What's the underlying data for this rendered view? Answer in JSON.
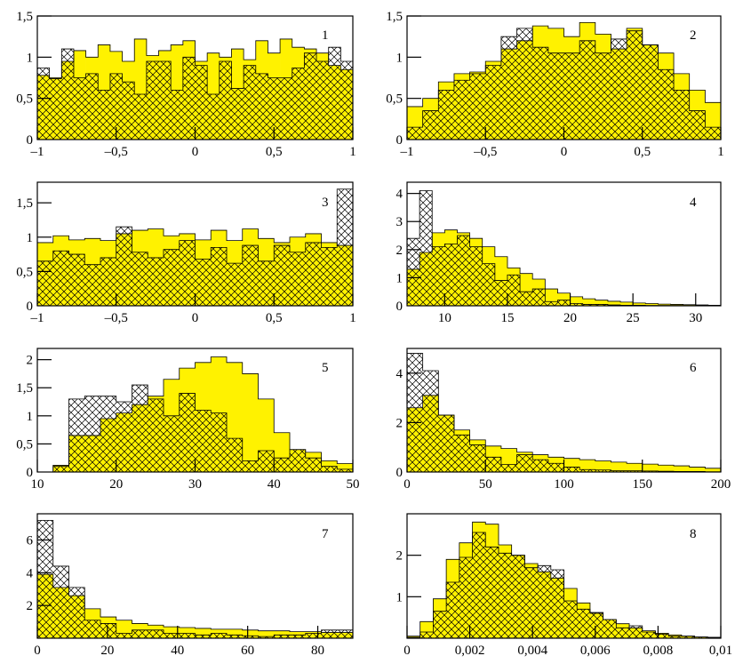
{
  "figure": {
    "colors": {
      "yellow": "#FFF200",
      "hatch": "#000000",
      "line": "#000000",
      "background": "#FFFFFF"
    }
  },
  "chart_data": [
    {
      "type": "histogram",
      "panel": "1",
      "xlim": [
        -1,
        1
      ],
      "ylim": [
        0,
        1.5
      ],
      "xticks": [
        -1,
        -0.5,
        0,
        0.5,
        1
      ],
      "xtick_labels": [
        "–1",
        "–0,5",
        "0",
        "0,5",
        "1"
      ],
      "yticks": [
        0,
        0.5,
        1,
        1.5
      ],
      "ytick_labels": [
        "0",
        "0,5",
        "1",
        "1,5"
      ],
      "bins": 26,
      "series": [
        {
          "style": "yellow-filled",
          "values": [
            0.78,
            0.75,
            0.95,
            1.08,
            1.0,
            1.15,
            1.07,
            0.95,
            1.22,
            1.02,
            1.08,
            1.15,
            1.2,
            0.95,
            1.05,
            1.0,
            1.1,
            0.97,
            1.2,
            1.05,
            1.22,
            1.12,
            1.1,
            1.05,
            0.9,
            0.85
          ]
        },
        {
          "style": "hatched",
          "values": [
            0.87,
            0.74,
            1.1,
            0.75,
            0.8,
            0.6,
            0.8,
            0.7,
            0.55,
            0.95,
            0.95,
            0.6,
            1.0,
            0.9,
            0.55,
            0.95,
            0.62,
            0.9,
            0.8,
            0.75,
            0.75,
            0.87,
            1.05,
            0.95,
            1.12,
            0.95
          ]
        }
      ]
    },
    {
      "type": "histogram",
      "panel": "2",
      "xlim": [
        -1,
        1
      ],
      "ylim": [
        0,
        1.5
      ],
      "xticks": [
        -1,
        -0.5,
        0,
        0.5,
        1
      ],
      "xtick_labels": [
        "–1",
        "–0,5",
        "0",
        "0,5",
        "1"
      ],
      "yticks": [
        0,
        0.5,
        1,
        1.5
      ],
      "ytick_labels": [
        "0",
        "0,5",
        "1",
        "1,5"
      ],
      "bins": 20,
      "series": [
        {
          "style": "yellow-filled",
          "values": [
            0.4,
            0.5,
            0.7,
            0.8,
            0.82,
            0.95,
            1.1,
            1.2,
            1.38,
            1.35,
            1.25,
            1.42,
            1.28,
            1.1,
            1.35,
            1.15,
            1.05,
            0.8,
            0.6,
            0.45
          ]
        },
        {
          "style": "hatched",
          "values": [
            0.15,
            0.35,
            0.6,
            0.72,
            0.8,
            0.9,
            1.25,
            1.35,
            1.12,
            1.05,
            1.05,
            1.2,
            1.05,
            1.22,
            1.32,
            1.15,
            0.85,
            0.6,
            0.35,
            0.15
          ]
        }
      ]
    },
    {
      "type": "histogram",
      "panel": "3",
      "xlim": [
        -1,
        1
      ],
      "ylim": [
        0,
        1.8
      ],
      "xticks": [
        -1,
        -0.5,
        0,
        0.5,
        1
      ],
      "xtick_labels": [
        "–1",
        "–0,5",
        "0",
        "0,5",
        "1"
      ],
      "yticks": [
        0,
        0.5,
        1,
        1.5
      ],
      "ytick_labels": [
        "0",
        "0,5",
        "1",
        "1,5"
      ],
      "bins": 20,
      "series": [
        {
          "style": "yellow-filled",
          "values": [
            0.92,
            1.02,
            0.96,
            0.98,
            0.95,
            1.05,
            1.1,
            1.12,
            1.02,
            1.05,
            0.96,
            1.1,
            0.95,
            1.12,
            0.98,
            0.92,
            1.0,
            1.05,
            0.92,
            0.88
          ]
        },
        {
          "style": "hatched",
          "values": [
            0.65,
            0.8,
            0.75,
            0.6,
            0.7,
            1.15,
            0.78,
            0.7,
            0.82,
            0.95,
            0.68,
            0.85,
            0.62,
            0.88,
            0.65,
            0.88,
            0.78,
            0.92,
            0.85,
            1.7
          ]
        }
      ]
    },
    {
      "type": "histogram",
      "panel": "4",
      "xlim": [
        7,
        32
      ],
      "ylim": [
        0,
        4.4
      ],
      "xticks": [
        10,
        15,
        20,
        25,
        30
      ],
      "xtick_labels": [
        "10",
        "15",
        "20",
        "25",
        "30"
      ],
      "yticks": [
        0,
        1,
        2,
        3,
        4
      ],
      "ytick_labels": [
        "0",
        "1",
        "2",
        "3",
        "4"
      ],
      "bins": 25,
      "series": [
        {
          "style": "yellow-filled",
          "values": [
            1.3,
            1.9,
            2.6,
            2.7,
            2.6,
            2.4,
            2.1,
            1.75,
            1.35,
            1.15,
            0.95,
            0.6,
            0.45,
            0.32,
            0.25,
            0.2,
            0.16,
            0.13,
            0.1,
            0.08,
            0.06,
            0.05,
            0.04,
            0.03,
            0.02
          ]
        },
        {
          "style": "hatched",
          "values": [
            2.4,
            4.1,
            2.1,
            2.2,
            2.5,
            2.1,
            1.5,
            0.9,
            1.1,
            0.5,
            0.6,
            0.15,
            0.2,
            0.08,
            0.05,
            0.05,
            0.03,
            0.02,
            0.02,
            0.01,
            0.01,
            0.01,
            0.01,
            0.01,
            0.01
          ]
        }
      ]
    },
    {
      "type": "histogram",
      "panel": "5",
      "xlim": [
        10,
        50
      ],
      "ylim": [
        0,
        2.2
      ],
      "xticks": [
        10,
        20,
        30,
        40,
        50
      ],
      "xtick_labels": [
        "10",
        "20",
        "30",
        "40",
        "50"
      ],
      "yticks": [
        0,
        0.5,
        1,
        1.5,
        2
      ],
      "ytick_labels": [
        "0",
        "0,5",
        "1",
        "1,5",
        "2"
      ],
      "bins": 20,
      "series": [
        {
          "style": "yellow-filled",
          "values": [
            0.0,
            0.12,
            0.65,
            0.65,
            0.95,
            1.05,
            1.2,
            1.35,
            1.65,
            1.85,
            1.95,
            2.05,
            1.95,
            1.75,
            1.3,
            0.7,
            0.4,
            0.35,
            0.2,
            0.15
          ]
        },
        {
          "style": "hatched",
          "values": [
            0.0,
            0.1,
            1.3,
            1.35,
            1.35,
            1.25,
            1.55,
            1.3,
            1.0,
            1.4,
            1.1,
            1.05,
            0.6,
            0.2,
            0.38,
            0.25,
            0.4,
            0.25,
            0.1,
            0.05
          ]
        }
      ]
    },
    {
      "type": "histogram",
      "panel": "6",
      "xlim": [
        0,
        200
      ],
      "ylim": [
        0,
        5
      ],
      "xticks": [
        0,
        50,
        100,
        150,
        200
      ],
      "xtick_labels": [
        "0",
        "50",
        "100",
        "150",
        "200"
      ],
      "yticks": [
        0,
        2,
        4
      ],
      "ytick_labels": [
        "0",
        "2",
        "4"
      ],
      "bins": 20,
      "series": [
        {
          "style": "yellow-filled",
          "values": [
            2.6,
            3.1,
            2.3,
            1.7,
            1.3,
            1.05,
            0.95,
            0.8,
            0.7,
            0.6,
            0.55,
            0.5,
            0.45,
            0.4,
            0.35,
            0.32,
            0.28,
            0.25,
            0.2,
            0.15
          ]
        },
        {
          "style": "hatched",
          "values": [
            4.8,
            4.1,
            2.3,
            1.5,
            1.1,
            0.6,
            0.3,
            0.7,
            0.5,
            0.35,
            0.2,
            0.1,
            0.08,
            0.05,
            0.05,
            0.04,
            0.03,
            0.02,
            0.02,
            0.01
          ]
        }
      ]
    },
    {
      "type": "histogram",
      "panel": "7",
      "xlim": [
        0,
        90
      ],
      "ylim": [
        0,
        7.6
      ],
      "xticks": [
        0,
        20,
        40,
        60,
        80
      ],
      "xtick_labels": [
        "0",
        "20",
        "40",
        "60",
        "80"
      ],
      "yticks": [
        2,
        4,
        6
      ],
      "ytick_labels": [
        "2",
        "4",
        "6"
      ],
      "bins": 20,
      "series": [
        {
          "style": "yellow-filled",
          "values": [
            3.9,
            3.1,
            2.6,
            1.8,
            1.3,
            1.1,
            0.9,
            0.8,
            0.7,
            0.65,
            0.6,
            0.55,
            0.55,
            0.5,
            0.45,
            0.45,
            0.4,
            0.4,
            0.35,
            0.35
          ]
        },
        {
          "style": "hatched",
          "values": [
            7.2,
            4.4,
            3.1,
            1.1,
            0.9,
            0.3,
            0.5,
            0.5,
            0.3,
            0.3,
            0.2,
            0.3,
            0.2,
            0.15,
            0.1,
            0.2,
            0.2,
            0.3,
            0.5,
            0.5
          ]
        }
      ]
    },
    {
      "type": "histogram",
      "panel": "8",
      "xlim": [
        0,
        0.01
      ],
      "ylim": [
        0,
        3.0
      ],
      "xticks": [
        0,
        0.002,
        0.004,
        0.006,
        0.008,
        0.01
      ],
      "xtick_labels": [
        "0",
        "0,002",
        "0,004",
        "0,006",
        "0,008",
        "0,01"
      ],
      "yticks": [
        1,
        2
      ],
      "ytick_labels": [
        "1",
        "2"
      ],
      "bins": 24,
      "series": [
        {
          "style": "yellow-filled",
          "values": [
            0.05,
            0.4,
            0.95,
            1.9,
            2.3,
            2.8,
            2.75,
            2.25,
            2.0,
            1.8,
            1.6,
            1.45,
            1.2,
            0.85,
            0.6,
            0.45,
            0.35,
            0.25,
            0.18,
            0.12,
            0.08,
            0.05,
            0.03,
            0.02
          ]
        },
        {
          "style": "hatched",
          "values": [
            0.02,
            0.15,
            0.65,
            1.35,
            1.95,
            2.55,
            2.2,
            2.05,
            2.0,
            1.7,
            1.75,
            1.65,
            0.9,
            0.7,
            0.62,
            0.45,
            0.25,
            0.3,
            0.15,
            0.1,
            0.05,
            0.05,
            0.03,
            0.02
          ]
        }
      ]
    }
  ]
}
